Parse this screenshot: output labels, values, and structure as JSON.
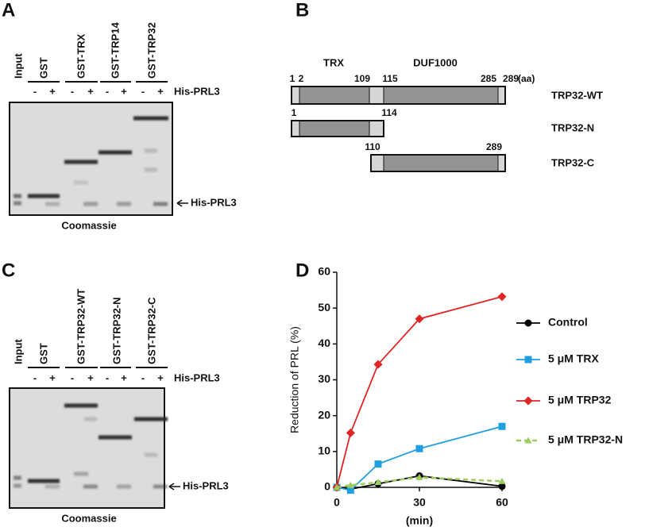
{
  "panels": {
    "a": {
      "label": "A",
      "lanes": [
        "Input",
        "GST",
        "GST-TRX",
        "GST-TRP14",
        "GST-TRP32"
      ],
      "signs": [
        "-",
        "+"
      ],
      "treatment": "His-PRL3",
      "arrow_label": "His-PRL3",
      "stain": "Coomassie"
    },
    "b": {
      "label": "B",
      "domains": [
        "TRX",
        "DUF1000"
      ],
      "unit": "(aa)",
      "constructs": [
        {
          "name": "TRP32-WT",
          "positions": [
            1,
            2,
            109,
            115,
            285,
            289
          ]
        },
        {
          "name": "TRP32-N",
          "positions": [
            1,
            114
          ]
        },
        {
          "name": "TRP32-C",
          "positions": [
            110,
            289
          ]
        }
      ]
    },
    "c": {
      "label": "C",
      "lanes": [
        "Input",
        "GST",
        "GST-TRP32-WT",
        "GST-TRP32-N",
        "GST-TRP32-C"
      ],
      "signs": [
        "-",
        "+"
      ],
      "treatment": "His-PRL3",
      "arrow_label": "His-PRL3",
      "stain": "Coomassie"
    },
    "d": {
      "label": "D"
    }
  },
  "chart_data": {
    "type": "line",
    "ylabel": "Reduction of PRL (%)",
    "xlabel": "(min)",
    "x": [
      0,
      5,
      15,
      30,
      60
    ],
    "xlim": [
      0,
      60
    ],
    "xticks": [
      0,
      30,
      60
    ],
    "ylim": [
      0,
      60
    ],
    "yticks": [
      0,
      10,
      20,
      30,
      40,
      50,
      60
    ],
    "series": [
      {
        "name": "Control",
        "color": "#000000",
        "marker": "circle",
        "dashed": false,
        "values": [
          0,
          -0.5,
          1,
          3.2,
          0.3
        ]
      },
      {
        "name": "5 μM TRX",
        "color": "#1e9fe0",
        "marker": "square",
        "dashed": false,
        "values": [
          0,
          -0.8,
          6.5,
          10.8,
          17
        ]
      },
      {
        "name": "5 μM TRP32",
        "color": "#e02424",
        "marker": "diamond",
        "dashed": false,
        "values": [
          0,
          15.2,
          34.3,
          47,
          53.2
        ]
      },
      {
        "name": "5 μM TRP32-N",
        "color": "#9bcc5c",
        "marker": "triangle",
        "dashed": true,
        "values": [
          0,
          0.6,
          1.4,
          2.8,
          1.7
        ]
      }
    ]
  }
}
